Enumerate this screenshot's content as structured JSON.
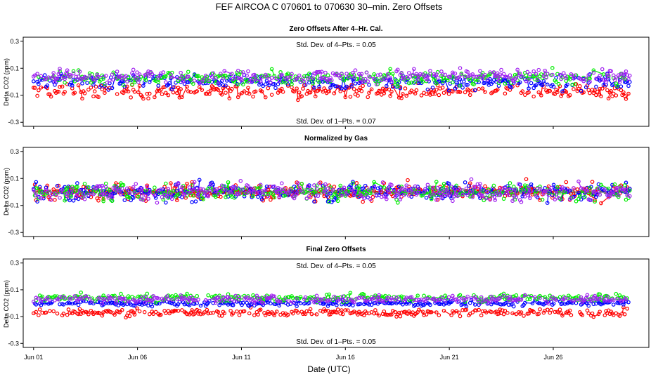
{
  "title": "FEF   AIRCOA C   070601 to 070630   30–min. Zero Offsets",
  "xlabel": "Date (UTC)",
  "colors": {
    "red": "#ff0000",
    "blue": "#0000ff",
    "green": "#00ee00",
    "purple": "#a020f0",
    "gray": "#555555"
  },
  "chart_data": [
    {
      "type": "scatter",
      "title": "Zero Offsets After 4–Hr. Cal.",
      "ylabel": "Delta CO2 (ppm)",
      "ylim": [
        -0.33,
        0.33
      ],
      "yticks": [
        "-0.3",
        "-0.1",
        "0.1",
        "0.3"
      ],
      "ytick_values": [
        -0.3,
        -0.1,
        0.1,
        0.3
      ],
      "xlim": [
        0.5,
        30.6
      ],
      "xticks": [
        "Jun 01",
        "Jun 06",
        "Jun 11",
        "Jun 16",
        "Jun 21",
        "Jun 26"
      ],
      "xtick_values": [
        1,
        6,
        11,
        16,
        21,
        26
      ],
      "stat_top": "Std. Dev. of 4–Pts. =  0.05",
      "stat_bottom": "Std. Dev. of 1–Pts. =  0.07",
      "series": [
        {
          "name": "red",
          "center": -0.07,
          "spread": 0.045
        },
        {
          "name": "blue",
          "center": 0.0,
          "spread": 0.05
        },
        {
          "name": "green",
          "center": 0.03,
          "spread": 0.045
        },
        {
          "name": "purple",
          "center": 0.04,
          "spread": 0.045
        }
      ]
    },
    {
      "type": "scatter",
      "title": "Normalized by Gas",
      "ylabel": "Delta CO2 (ppm)",
      "ylim": [
        -0.33,
        0.33
      ],
      "yticks": [
        "-0.3",
        "-0.1",
        "0.1",
        "0.3"
      ],
      "ytick_values": [
        -0.3,
        -0.1,
        0.1,
        0.3
      ],
      "xlim": [
        0.5,
        30.6
      ],
      "xticks": [
        "Jun 01",
        "Jun 06",
        "Jun 11",
        "Jun 16",
        "Jun 21",
        "Jun 26"
      ],
      "xtick_values": [
        1,
        6,
        11,
        16,
        21,
        26
      ],
      "stat_top": "",
      "stat_bottom": "",
      "series": [
        {
          "name": "gray",
          "center": 0.0,
          "spread": 0.015
        },
        {
          "name": "red",
          "center": 0.0,
          "spread": 0.06
        },
        {
          "name": "blue",
          "center": 0.0,
          "spread": 0.06
        },
        {
          "name": "green",
          "center": 0.0,
          "spread": 0.06
        },
        {
          "name": "purple",
          "center": 0.0,
          "spread": 0.06
        }
      ]
    },
    {
      "type": "scatter",
      "title": "Final Zero Offsets",
      "ylabel": "Delta CO2 (ppm)",
      "ylim": [
        -0.33,
        0.33
      ],
      "yticks": [
        "-0.3",
        "-0.1",
        "0.1",
        "0.3"
      ],
      "ytick_values": [
        -0.3,
        -0.1,
        0.1,
        0.3
      ],
      "xlim": [
        0.5,
        30.6
      ],
      "xticks": [
        "Jun 01",
        "Jun 06",
        "Jun 11",
        "Jun 16",
        "Jun 21",
        "Jun 26"
      ],
      "xtick_values": [
        1,
        6,
        11,
        16,
        21,
        26
      ],
      "stat_top": "Std. Dev. of 4–Pts. =  0.05",
      "stat_bottom": "Std. Dev. of 1–Pts. =  0.05",
      "series": [
        {
          "name": "red",
          "center": -0.07,
          "spread": 0.025
        },
        {
          "name": "blue",
          "center": 0.0,
          "spread": 0.02
        },
        {
          "name": "green",
          "center": 0.04,
          "spread": 0.025
        },
        {
          "name": "purple",
          "center": 0.03,
          "spread": 0.025
        }
      ]
    }
  ]
}
